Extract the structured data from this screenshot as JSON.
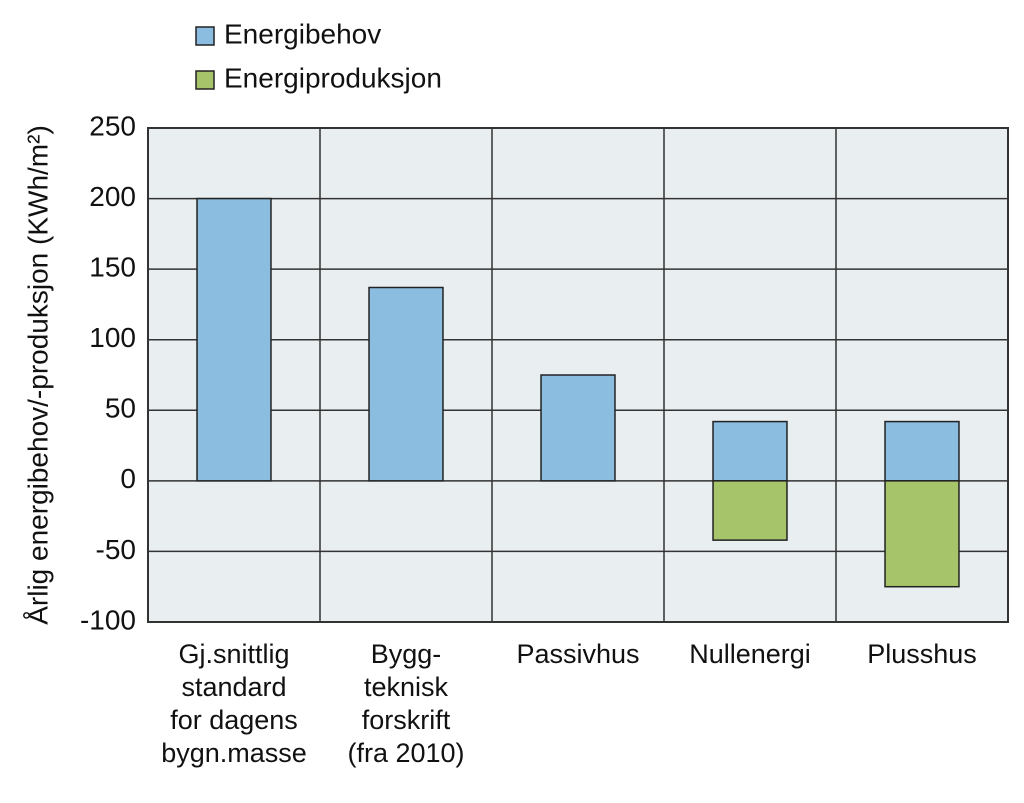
{
  "chart_data": {
    "type": "bar",
    "y_label": "Årlig energibehov/-produksjon (KWh/m²)",
    "categories": [
      "Gj.snittlig\nstandard\nfor dagens\nbygn.masse",
      "Bygg-\nteknisk\nforskrift\n(fra 2010)",
      "Passivhus",
      "Nullenergi",
      "Plusshus"
    ],
    "series": [
      {
        "name": "Energibehov",
        "color": "#8bbde0",
        "values": [
          200,
          137,
          75,
          42,
          42
        ]
      },
      {
        "name": "Energiproduksjon",
        "color": "#a6c46a",
        "values": [
          null,
          null,
          null,
          -42,
          -75
        ]
      }
    ],
    "ylim": [
      -100,
      250
    ],
    "yticks": [
      -100,
      -50,
      0,
      50,
      100,
      150,
      200,
      250
    ],
    "grid": true,
    "legend": "top-left"
  }
}
